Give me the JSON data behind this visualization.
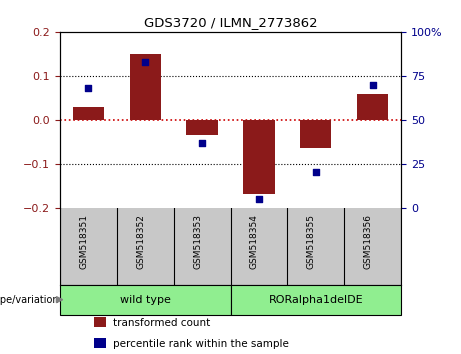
{
  "title": "GDS3720 / ILMN_2773862",
  "samples": [
    "GSM518351",
    "GSM518352",
    "GSM518353",
    "GSM518354",
    "GSM518355",
    "GSM518356"
  ],
  "red_bars": [
    0.028,
    0.15,
    -0.035,
    -0.17,
    -0.065,
    0.058
  ],
  "blue_dots": [
    68,
    83,
    37,
    5,
    20,
    70
  ],
  "ylim_left": [
    -0.2,
    0.2
  ],
  "ylim_right": [
    0,
    100
  ],
  "yticks_left": [
    -0.2,
    -0.1,
    0.0,
    0.1,
    0.2
  ],
  "yticks_right": [
    0,
    25,
    50,
    75,
    100
  ],
  "bar_color": "#8B1A1A",
  "dot_color": "#00008B",
  "zero_line_color": "#CC0000",
  "grid_color": "#000000",
  "group_wt_label": "wild type",
  "group_mut_label": "RORalpha1delDE",
  "group_color": "#90EE90",
  "group_label": "genotype/variation",
  "legend_items": [
    {
      "label": "transformed count",
      "color": "#8B1A1A"
    },
    {
      "label": "percentile rank within the sample",
      "color": "#00008B"
    }
  ]
}
